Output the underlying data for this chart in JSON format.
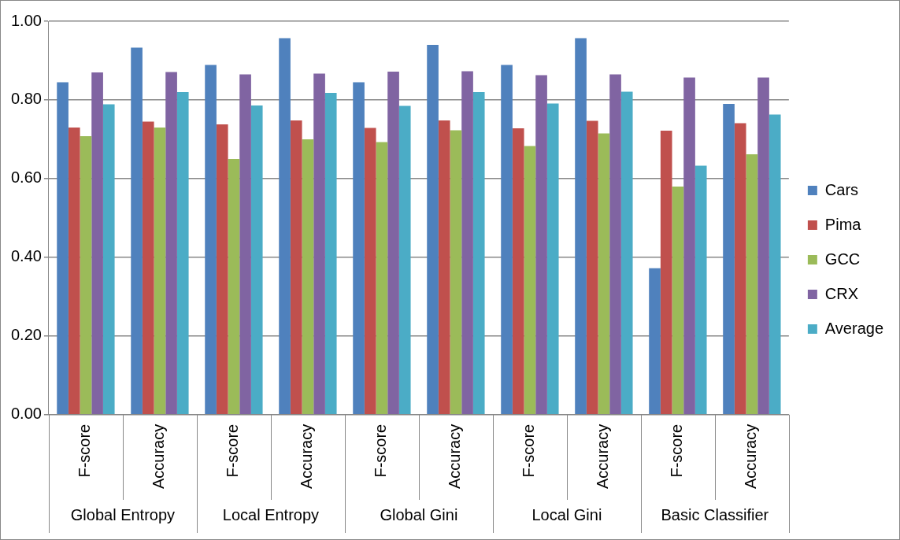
{
  "chart_data": {
    "type": "bar",
    "categories": [
      "F-score",
      "Accuracy",
      "F-score",
      "Accuracy",
      "F-score",
      "Accuracy",
      "F-score",
      "Accuracy",
      "F-score",
      "Accuracy"
    ],
    "series": [
      {
        "name": "Cars",
        "color": "#4f81bd",
        "values": [
          0.845,
          0.933,
          0.889,
          0.957,
          0.845,
          0.94,
          0.889,
          0.957,
          0.372,
          0.79
        ]
      },
      {
        "name": "Pima",
        "color": "#c0504d",
        "values": [
          0.73,
          0.745,
          0.738,
          0.748,
          0.729,
          0.748,
          0.728,
          0.747,
          0.722,
          0.741
        ]
      },
      {
        "name": "GCC",
        "color": "#9bbb59",
        "values": [
          0.708,
          0.73,
          0.65,
          0.7,
          0.693,
          0.723,
          0.683,
          0.715,
          0.58,
          0.662
        ]
      },
      {
        "name": "CRX",
        "color": "#8064a2",
        "values": [
          0.87,
          0.871,
          0.865,
          0.867,
          0.872,
          0.873,
          0.863,
          0.865,
          0.857,
          0.857
        ]
      },
      {
        "name": "Average",
        "color": "#4bacc6",
        "values": [
          0.789,
          0.82,
          0.786,
          0.818,
          0.785,
          0.82,
          0.791,
          0.821,
          0.633,
          0.763
        ]
      }
    ],
    "annotations": [
      "Global Entropy",
      "Local Entropy",
      "Global Gini",
      "Local Gini",
      "Basic Classifier"
    ],
    "ylim": [
      0,
      1
    ],
    "yticks": [
      {
        "value": 0,
        "label": "0.00"
      },
      {
        "value": 0.2,
        "label": "0.20"
      },
      {
        "value": 0.4,
        "label": "0.40"
      },
      {
        "value": 0.6,
        "label": "0.60"
      },
      {
        "value": 0.8,
        "label": "0.80"
      },
      {
        "value": 1,
        "label": "1.00"
      }
    ],
    "grid": "y",
    "legend": "right"
  }
}
